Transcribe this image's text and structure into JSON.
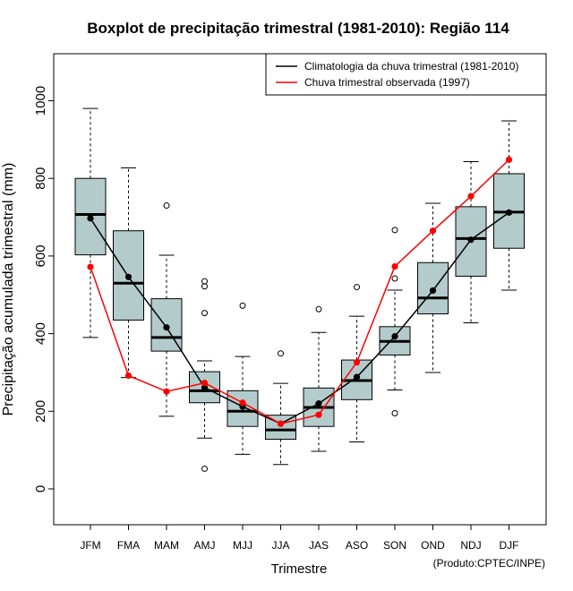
{
  "chart_data": {
    "type": "boxplot",
    "title": "Boxplot de precipitação trimestral (1981-2010): Região 114",
    "xlabel": "Trimestre",
    "ylabel": "Precipitação acumulada trimestral (mm)",
    "ylim": [
      -90,
      1110
    ],
    "yticks": [
      0,
      200,
      400,
      600,
      800,
      1000
    ],
    "categories": [
      "JFM",
      "FMA",
      "MAM",
      "AMJ",
      "MJJ",
      "JJA",
      "JAS",
      "ASO",
      "SON",
      "OND",
      "NDJ",
      "DJF"
    ],
    "boxes": [
      {
        "whisker_low": 390,
        "q1": 603,
        "median": 707,
        "q3": 800,
        "whisker_high": 980,
        "outliers": []
      },
      {
        "whisker_low": 287,
        "q1": 435,
        "median": 530,
        "q3": 665,
        "whisker_high": 827,
        "outliers": []
      },
      {
        "whisker_low": 187,
        "q1": 355,
        "median": 390,
        "q3": 490,
        "whisker_high": 602,
        "outliers": [
          730
        ]
      },
      {
        "whisker_low": 131,
        "q1": 222,
        "median": 253,
        "q3": 302,
        "whisker_high": 330,
        "outliers": [
          535,
          522,
          453,
          52
        ]
      },
      {
        "whisker_low": 89,
        "q1": 161,
        "median": 200,
        "q3": 253,
        "whisker_high": 341,
        "outliers": [
          472
        ]
      },
      {
        "whisker_low": 63,
        "q1": 128,
        "median": 152,
        "q3": 190,
        "whisker_high": 272,
        "outliers": [
          349
        ]
      },
      {
        "whisker_low": 97,
        "q1": 161,
        "median": 210,
        "q3": 260,
        "whisker_high": 403,
        "outliers": [
          463
        ]
      },
      {
        "whisker_low": 121,
        "q1": 230,
        "median": 279,
        "q3": 332,
        "whisker_high": 445,
        "outliers": [
          520
        ]
      },
      {
        "whisker_low": 255,
        "q1": 345,
        "median": 380,
        "q3": 418,
        "whisker_high": 512,
        "outliers": [
          667,
          542,
          195
        ]
      },
      {
        "whisker_low": 300,
        "q1": 451,
        "median": 492,
        "q3": 583,
        "whisker_high": 736,
        "outliers": []
      },
      {
        "whisker_low": 428,
        "q1": 548,
        "median": 645,
        "q3": 727,
        "whisker_high": 843,
        "outliers": []
      },
      {
        "whisker_low": 512,
        "q1": 620,
        "median": 713,
        "q3": 812,
        "whisker_high": 948,
        "outliers": []
      }
    ],
    "series": [
      {
        "name": "Climatologia da chuva trimestral (1981-2010)",
        "color": "#000000",
        "values": [
          697,
          546,
          416,
          261,
          212,
          168,
          220,
          288,
          393,
          511,
          642,
          712
        ]
      },
      {
        "name": "Chuva trimestral observada (1997)",
        "color": "#ff0000",
        "values": [
          572,
          292,
          251,
          273,
          222,
          168,
          191,
          326,
          573,
          665,
          754,
          848
        ]
      }
    ],
    "box_fill": "#b4cbcb",
    "legend_position": "top-right",
    "footer": "(Produto:CPTEC/INPE)"
  }
}
